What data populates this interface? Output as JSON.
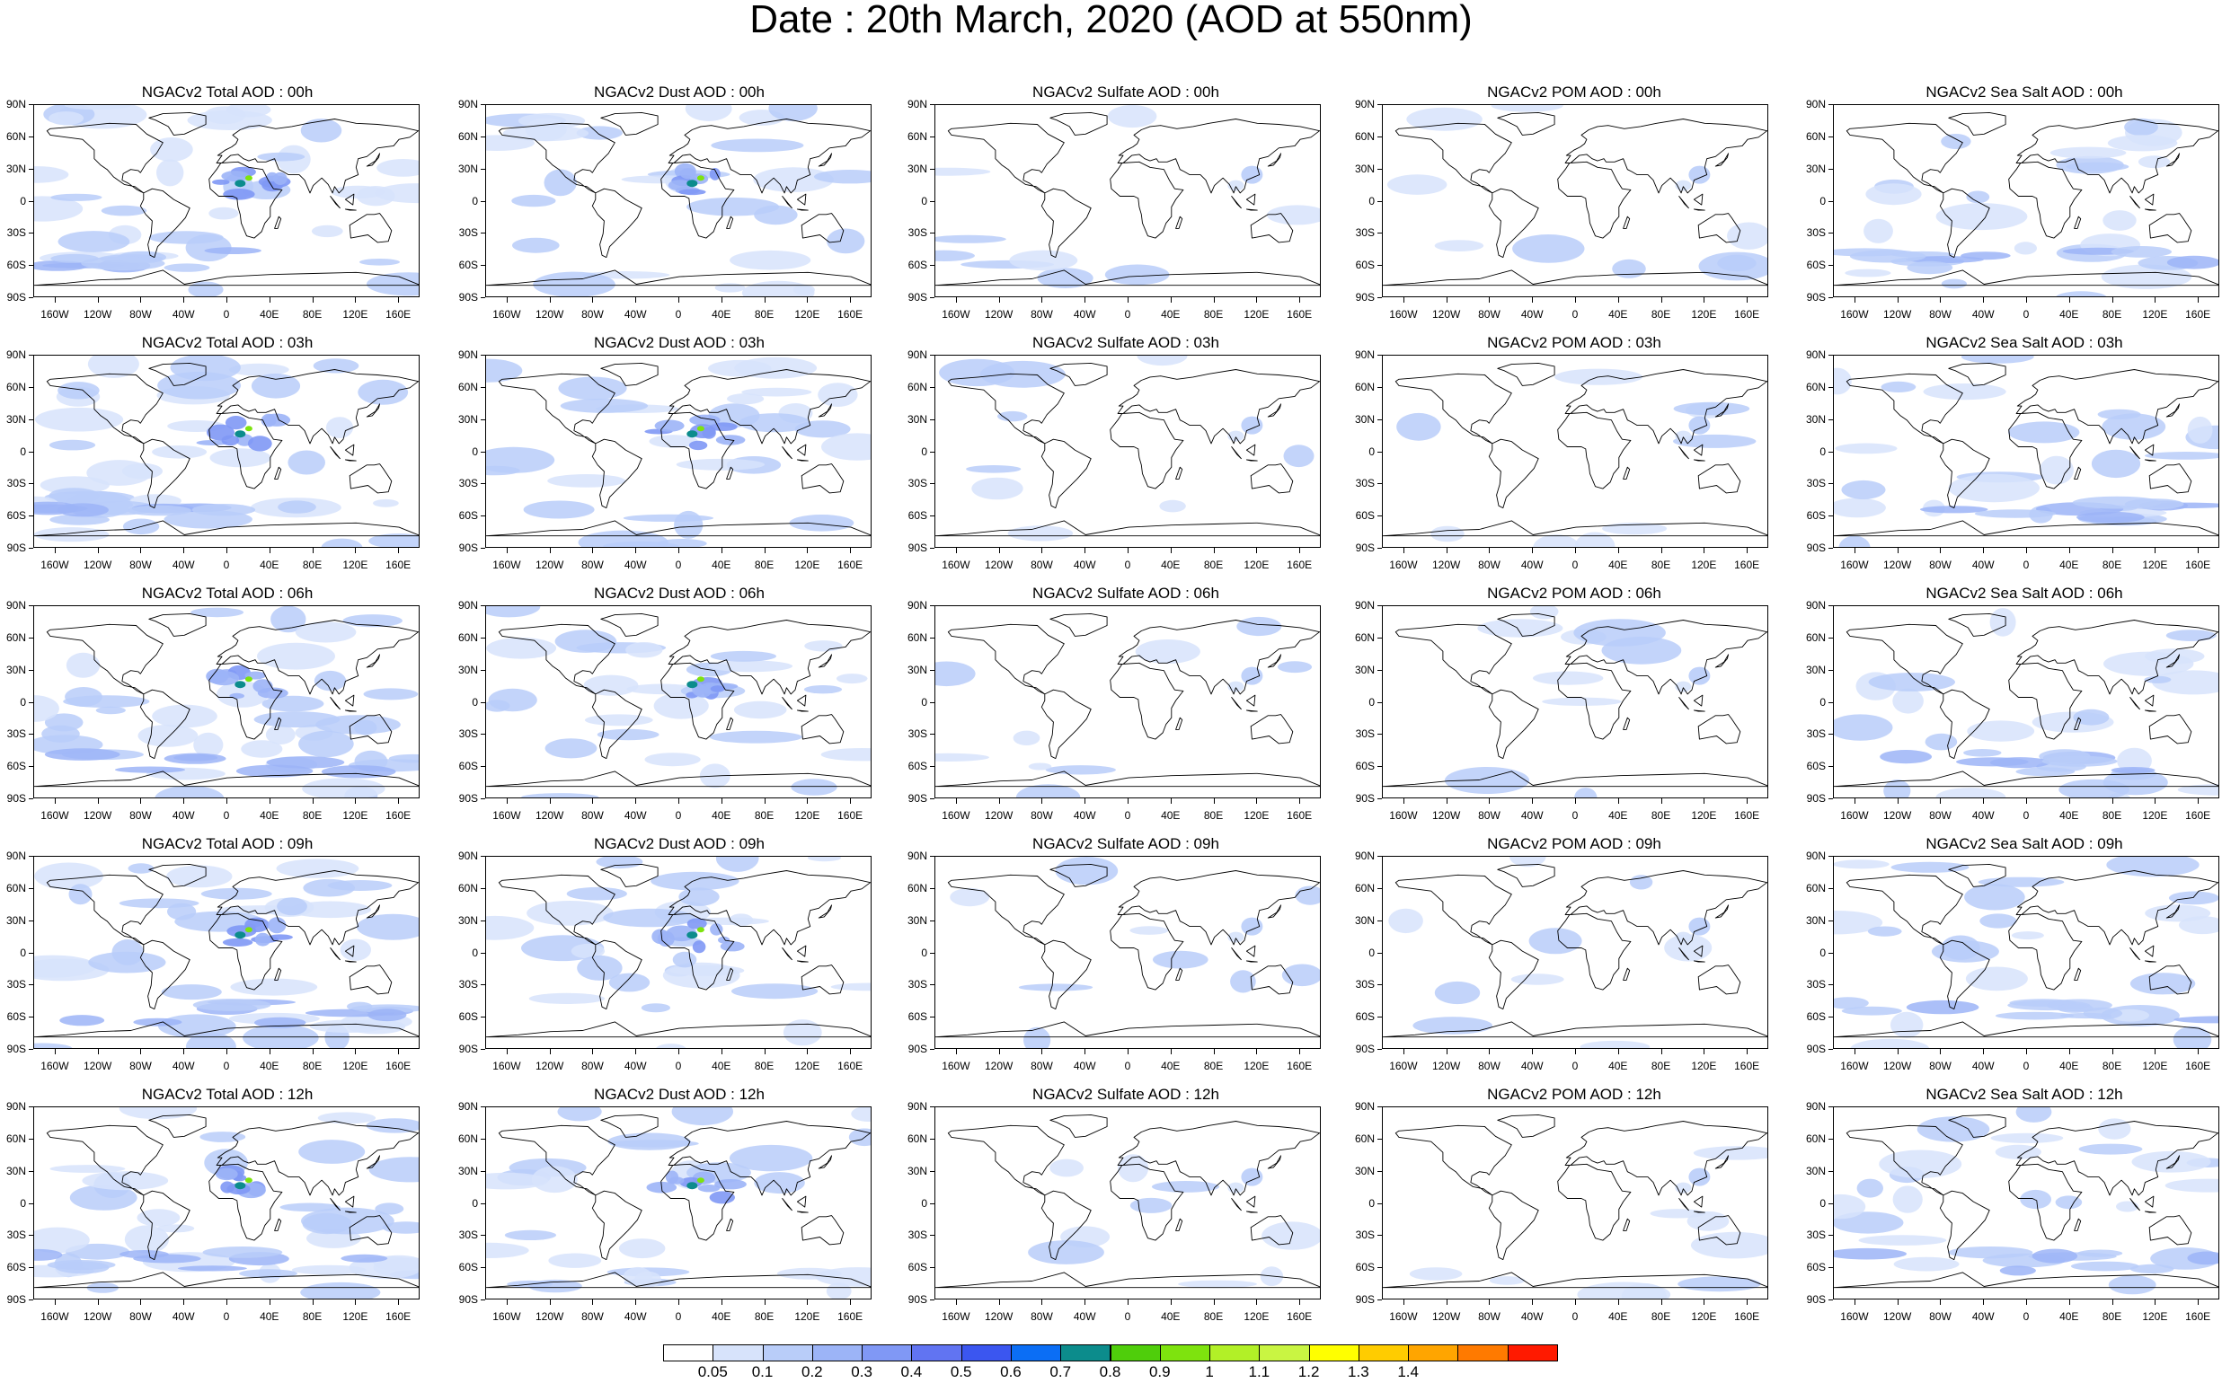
{
  "title": "Date : 20th March, 2020 (AOD at 550nm)",
  "species": [
    {
      "key": "total",
      "color_intensity": 0.95
    },
    {
      "key": "dust",
      "color_intensity": 0.75
    },
    {
      "key": "sulfate",
      "color_intensity": 0.15
    },
    {
      "key": "pom",
      "color_intensity": 0.15
    },
    {
      "key": "seasalt",
      "color_intensity": 0.6
    }
  ],
  "panel_titles": [
    [
      "NGACv2 Total AOD : 00h",
      "NGACv2 Dust AOD : 00h",
      "NGACv2 Sulfate AOD : 00h",
      "NGACv2 POM AOD : 00h",
      "NGACv2 Sea Salt AOD : 00h"
    ],
    [
      "NGACv2 Total AOD : 03h",
      "NGACv2 Dust AOD : 03h",
      "NGACv2 Sulfate AOD : 03h",
      "NGACv2 POM AOD : 03h",
      "NGACv2 Sea Salt AOD : 03h"
    ],
    [
      "NGACv2 Total AOD : 06h",
      "NGACv2 Dust AOD : 06h",
      "NGACv2 Sulfate AOD : 06h",
      "NGACv2 POM AOD : 06h",
      "NGACv2 Sea Salt AOD : 06h"
    ],
    [
      "NGACv2 Total AOD : 09h",
      "NGACv2 Dust AOD : 09h",
      "NGACv2 Sulfate AOD : 09h",
      "NGACv2 POM AOD : 09h",
      "NGACv2 Sea Salt  AOD : 09h"
    ],
    [
      "NGACv2 Total AOD  : 12h",
      "NGACv2 Dust AOD : 12h",
      "NGACv2 Sulfate AOD : 12h",
      "NGACv2 POM  AOD : 12h",
      "NGACv2 Sea Salt  AOD : 12h"
    ]
  ],
  "lat_labels": [
    "90N",
    "60N",
    "30N",
    "0",
    "30S",
    "60S",
    "90S"
  ],
  "lon_labels": [
    "160W",
    "120W",
    "80W",
    "40W",
    "0",
    "40E",
    "80E",
    "120E",
    "160E"
  ],
  "lon_values": [
    -160,
    -120,
    -80,
    -40,
    0,
    40,
    80,
    120,
    160
  ],
  "lat_values": [
    90,
    60,
    30,
    0,
    -30,
    -60,
    -90
  ],
  "colorbar": {
    "colors": [
      "#ffffff",
      "#d7e3fb",
      "#b9cdf9",
      "#9cb4f7",
      "#8098f5",
      "#6174f2",
      "#3b56f0",
      "#0b6ef5",
      "#0c8c8c",
      "#4fce0b",
      "#7ee30e",
      "#b2f027",
      "#c9f542",
      "#ffff00",
      "#ffcc00",
      "#ffa500",
      "#ff7a00",
      "#ff1a00"
    ],
    "labels": [
      "0.05",
      "0.1",
      "0.2",
      "0.3",
      "0.4",
      "0.5",
      "0.6",
      "0.7",
      "0.8",
      "0.9",
      "1",
      "1.1",
      "1.2",
      "1.3",
      "1.4"
    ]
  }
}
